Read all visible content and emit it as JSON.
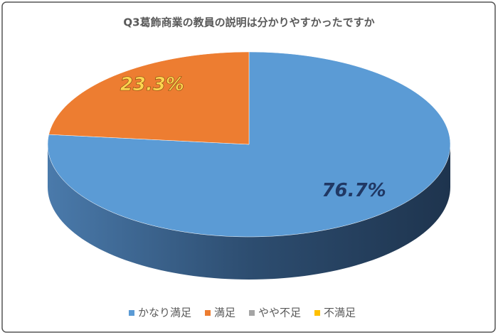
{
  "chart_data": {
    "type": "pie3d",
    "title": "Q3葛飾商業の教員の説明は分かりやすかったですか",
    "categories": [
      "かなり満足",
      "満足",
      "やや不足",
      "不満足"
    ],
    "values": [
      76.7,
      23.3,
      0,
      0
    ],
    "value_labels": [
      "76.7%",
      "23.3%",
      null,
      null
    ],
    "colors": [
      "#5b9bd5",
      "#ed7d31",
      "#a5a5a5",
      "#ffc000"
    ],
    "legend": "bottom"
  }
}
